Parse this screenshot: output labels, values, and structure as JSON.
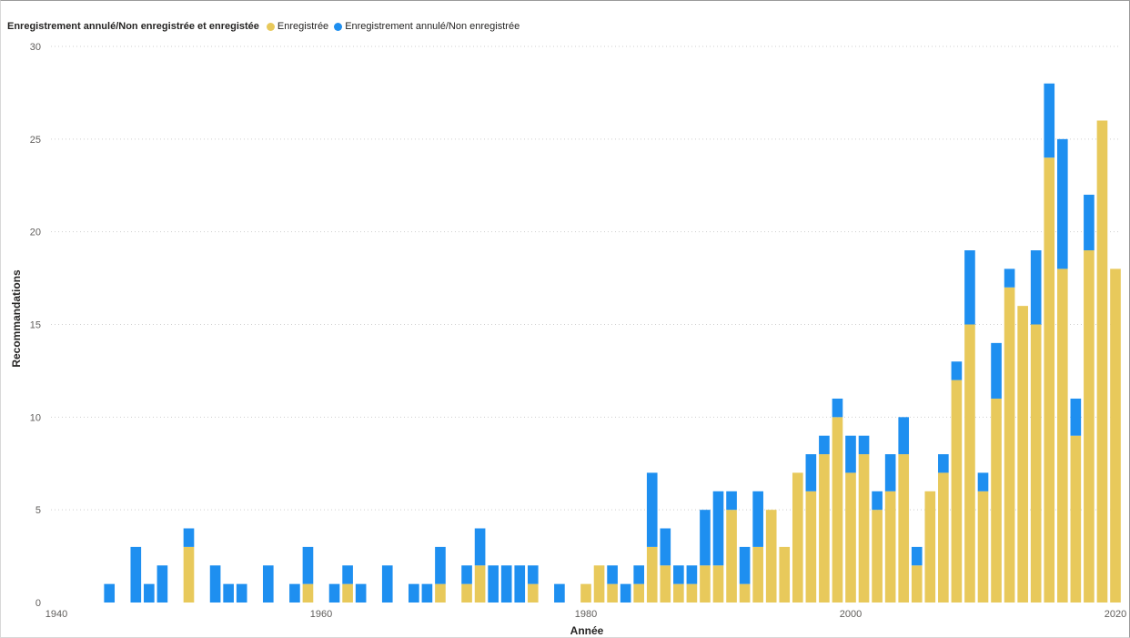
{
  "legend": {
    "title": "Enregistrement annulé/Non enregistrée et enregistée",
    "items": [
      {
        "label": "Enregistrée",
        "color": "#E8C95B"
      },
      {
        "label": "Enregistrement annulé/Non enregistrée",
        "color": "#1E8FF0"
      }
    ]
  },
  "chart_data": {
    "type": "bar",
    "stacked": true,
    "xlabel": "Année",
    "ylabel": "Recommandations",
    "xlim": [
      1940,
      2020
    ],
    "ylim": [
      0,
      30
    ],
    "x_ticks": [
      1940,
      1960,
      1980,
      2000,
      2020
    ],
    "y_ticks": [
      0,
      5,
      10,
      15,
      20,
      25,
      30
    ],
    "grid": true,
    "legend_position": "top-left",
    "years": [
      1944,
      1946,
      1947,
      1948,
      1950,
      1952,
      1953,
      1954,
      1956,
      1958,
      1959,
      1961,
      1962,
      1963,
      1965,
      1967,
      1968,
      1969,
      1971,
      1972,
      1973,
      1974,
      1975,
      1976,
      1978,
      1980,
      1981,
      1982,
      1983,
      1984,
      1985,
      1986,
      1987,
      1988,
      1989,
      1990,
      1991,
      1992,
      1993,
      1994,
      1995,
      1996,
      1997,
      1998,
      1999,
      2000,
      2001,
      2002,
      2003,
      2004,
      2005,
      2006,
      2007,
      2008,
      2009,
      2010,
      2011,
      2012,
      2013,
      2014,
      2015,
      2016,
      2017,
      2018,
      2019,
      2020
    ],
    "series": [
      {
        "name": "Enregistrée",
        "color": "#E8C95B",
        "values": [
          0,
          0,
          0,
          0,
          3,
          0,
          0,
          0,
          0,
          0,
          1,
          0,
          1,
          0,
          0,
          0,
          0,
          1,
          1,
          2,
          0,
          0,
          0,
          1,
          0,
          1,
          2,
          1,
          0,
          1,
          3,
          2,
          1,
          1,
          2,
          2,
          5,
          1,
          3,
          5,
          3,
          7,
          6,
          8,
          10,
          7,
          8,
          5,
          6,
          8,
          2,
          6,
          7,
          12,
          15,
          6,
          11,
          17,
          16,
          15,
          24,
          18,
          9,
          19,
          26,
          18
        ]
      },
      {
        "name": "Enregistrement annulé/Non enregistrée",
        "color": "#1E8FF0",
        "values": [
          1,
          3,
          1,
          2,
          1,
          2,
          1,
          1,
          2,
          1,
          2,
          1,
          1,
          1,
          2,
          1,
          1,
          2,
          1,
          2,
          2,
          2,
          2,
          1,
          1,
          0,
          0,
          1,
          1,
          1,
          4,
          2,
          1,
          1,
          3,
          4,
          1,
          2,
          3,
          0,
          0,
          0,
          2,
          1,
          1,
          2,
          1,
          1,
          2,
          2,
          1,
          0,
          1,
          1,
          4,
          1,
          3,
          1,
          0,
          4,
          4,
          7,
          2,
          3,
          0,
          0
        ]
      }
    ]
  }
}
